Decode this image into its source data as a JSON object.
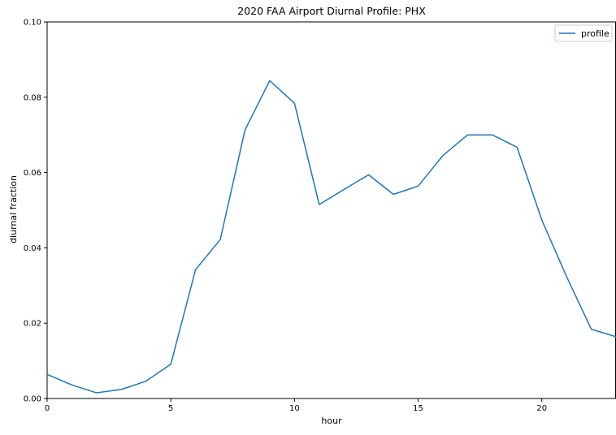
{
  "chart_data": {
    "type": "line",
    "title": "2020 FAA Airport Diurnal Profile: PHX",
    "xlabel": "hour",
    "ylabel": "diurnal fraction",
    "xlim": [
      0,
      23
    ],
    "ylim": [
      0.0,
      0.1
    ],
    "xticks": [
      0,
      5,
      10,
      15,
      20
    ],
    "xtick_labels": [
      "0",
      "5",
      "10",
      "15",
      "20"
    ],
    "yticks": [
      0.0,
      0.02,
      0.04,
      0.06,
      0.08,
      0.1
    ],
    "ytick_labels": [
      "0.00",
      "0.02",
      "0.04",
      "0.06",
      "0.08",
      "0.10"
    ],
    "grid": false,
    "legend_position": "top-right",
    "series": [
      {
        "name": "profile",
        "color": "#1f77b4",
        "x": [
          0,
          1,
          2,
          3,
          4,
          5,
          6,
          7,
          8,
          9,
          10,
          11,
          12,
          13,
          14,
          15,
          16,
          17,
          18,
          19,
          20,
          21,
          22,
          23
        ],
        "y": [
          0.0064,
          0.0036,
          0.0015,
          0.0024,
          0.0046,
          0.0091,
          0.0342,
          0.0422,
          0.0713,
          0.0844,
          0.0784,
          0.0515,
          0.0555,
          0.0594,
          0.0542,
          0.0564,
          0.0645,
          0.07,
          0.07,
          0.0667,
          0.0474,
          0.0324,
          0.0184,
          0.0164
        ]
      }
    ]
  }
}
